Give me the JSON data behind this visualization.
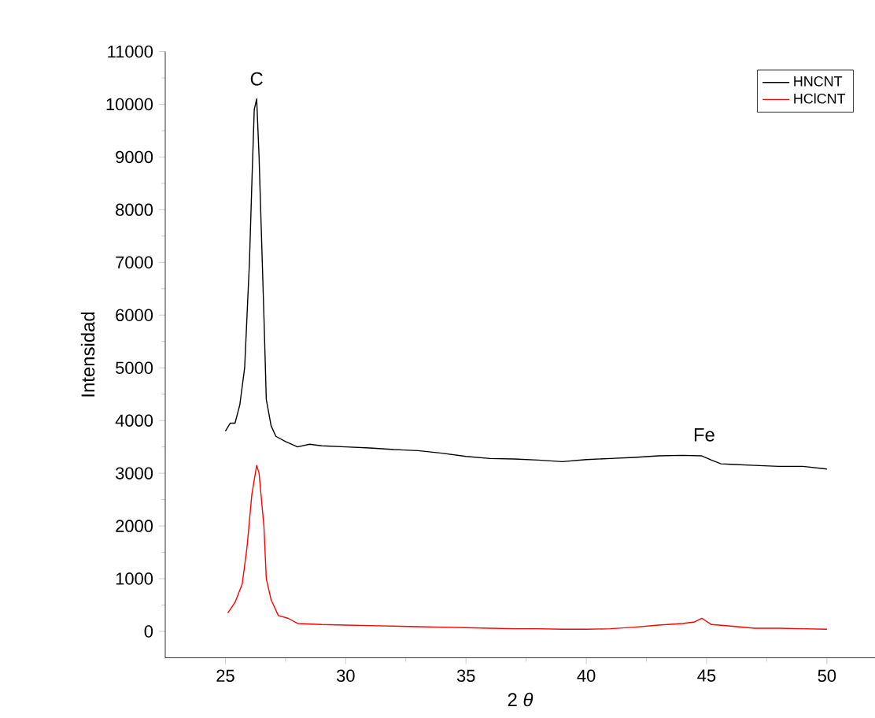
{
  "chart_data": {
    "type": "line",
    "xlabel": "2 *θ*",
    "ylabel": "Intensidad",
    "xlim": [
      22.5,
      52
    ],
    "ylim": [
      -500,
      11000
    ],
    "xticks": [
      25,
      30,
      35,
      40,
      45,
      50
    ],
    "yticks": [
      0,
      1000,
      2000,
      3000,
      4000,
      5000,
      6000,
      7000,
      8000,
      9000,
      10000,
      11000
    ],
    "legend": "top right",
    "grid": false,
    "marker": "none",
    "line_style": "solid",
    "annotations": [
      {
        "text": "C",
        "x": 26.3,
        "y": 10100
      },
      {
        "text": "Fe",
        "x": 44.9,
        "y": 3350
      }
    ],
    "series": [
      {
        "name": "HNCNT",
        "color": "#000000",
        "x": [
          25.0,
          25.2,
          25.4,
          25.6,
          25.8,
          26.0,
          26.1,
          26.2,
          26.3,
          26.4,
          26.5,
          26.6,
          26.7,
          26.9,
          27.1,
          27.5,
          28,
          28.5,
          29,
          30,
          31,
          32,
          33,
          34,
          35,
          36,
          37,
          38,
          39,
          40,
          41,
          42,
          43,
          44,
          44.8,
          45.2,
          45.6,
          46,
          47,
          48,
          49,
          50
        ],
        "values": [
          3800,
          3950,
          3950,
          4300,
          5000,
          7000,
          8500,
          9900,
          10100,
          9000,
          7500,
          6000,
          4400,
          3900,
          3700,
          3600,
          3500,
          3550,
          3520,
          3500,
          3480,
          3450,
          3430,
          3380,
          3320,
          3280,
          3270,
          3250,
          3220,
          3260,
          3280,
          3300,
          3330,
          3340,
          3330,
          3250,
          3180,
          3170,
          3150,
          3130,
          3130,
          3080
        ]
      },
      {
        "name": "HClCNT",
        "color": "#ff0000",
        "x": [
          25.1,
          25.4,
          25.7,
          25.9,
          26.1,
          26.3,
          26.4,
          26.6,
          26.7,
          26.9,
          27.2,
          27.6,
          28,
          29,
          30,
          31,
          32,
          33,
          34,
          35,
          36,
          37,
          38,
          39,
          40,
          41,
          42,
          43,
          44,
          44.5,
          44.8,
          45.2,
          46,
          47,
          48,
          49,
          50
        ],
        "values": [
          350,
          550,
          900,
          1600,
          2600,
          3150,
          3000,
          2000,
          1000,
          600,
          300,
          250,
          150,
          130,
          120,
          110,
          100,
          90,
          80,
          70,
          60,
          50,
          50,
          40,
          40,
          50,
          80,
          120,
          150,
          180,
          250,
          130,
          100,
          60,
          60,
          50,
          40
        ]
      }
    ]
  }
}
